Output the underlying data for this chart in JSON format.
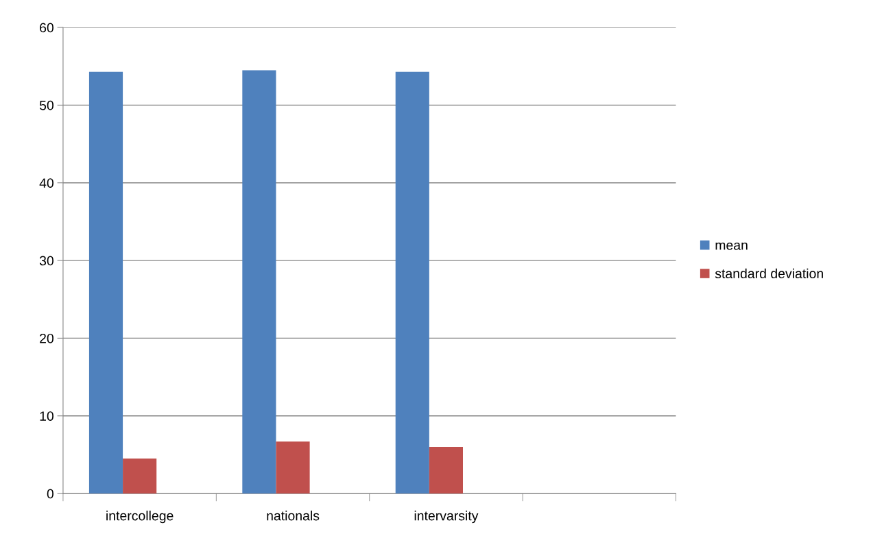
{
  "chart_data": {
    "type": "bar",
    "categories": [
      "intercollege",
      "nationals",
      "intervarsity",
      null
    ],
    "series": [
      {
        "name": "mean",
        "color": "#4f81bd",
        "values": [
          54.3,
          54.5,
          54.3,
          null
        ]
      },
      {
        "name": "standard deviation",
        "color": "#c0504d",
        "values": [
          4.5,
          6.7,
          6.0,
          null
        ]
      }
    ],
    "ylim": [
      0,
      60
    ],
    "yticks": [
      0,
      10,
      20,
      30,
      40,
      50,
      60
    ],
    "grid": "y",
    "legend": "right"
  }
}
